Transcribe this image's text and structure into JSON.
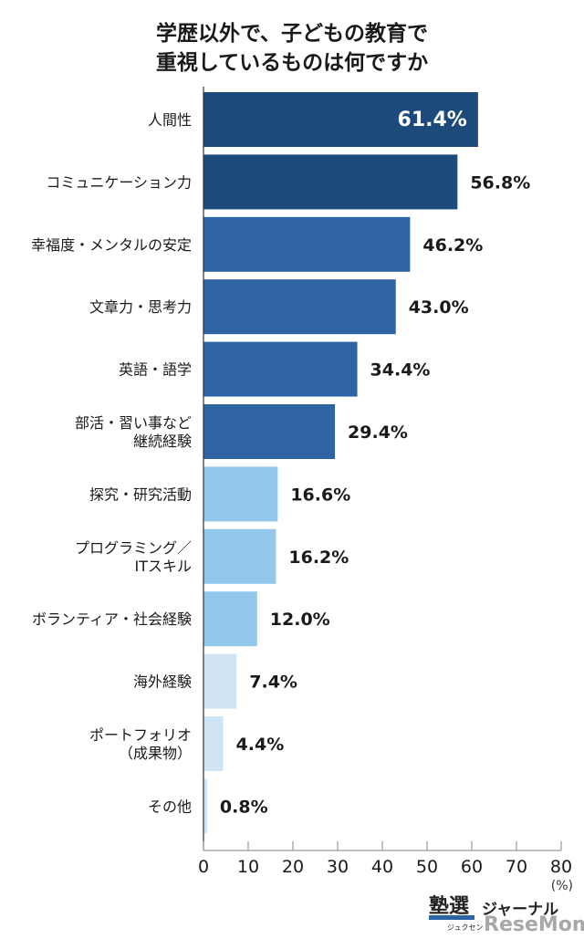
{
  "chart_data": {
    "type": "bar",
    "orientation": "horizontal",
    "title": [
      "学歴以外で、子どもの教育で",
      "重視しているものは何ですか"
    ],
    "categories": [
      "人間性",
      "コミュニケーション力",
      "幸福度・メンタルの安定",
      "文章力・思考力",
      "英語・語学",
      "部活・習い事など\n継続経験",
      "探究・研究活動",
      "プログラミング／\nITスキル",
      "ボランティア・社会経験",
      "海外経験",
      "ポートフォリオ\n（成果物）",
      "その他"
    ],
    "values": [
      61.4,
      56.8,
      46.2,
      43.0,
      34.4,
      29.4,
      16.6,
      16.2,
      12.0,
      7.4,
      4.4,
      0.8
    ],
    "value_labels": [
      "61.4%",
      "56.8%",
      "46.2%",
      "43.0%",
      "34.4%",
      "29.4%",
      "16.6%",
      "16.2%",
      "12.0%",
      "7.4%",
      "4.4%",
      "0.8%"
    ],
    "bar_colors": [
      "#1c4a7b",
      "#1c4a7b",
      "#2e64a4",
      "#2e64a4",
      "#2e64a4",
      "#2e64a4",
      "#92c8eb",
      "#92c8eb",
      "#92c8eb",
      "#cfe5f6",
      "#cfe5f6",
      "#cfe5f6"
    ],
    "xlim": [
      0,
      80
    ],
    "xticks": [
      "0",
      "10",
      "20",
      "30",
      "40",
      "50",
      "60",
      "70",
      "80"
    ],
    "xunit": "(%)",
    "grid": false,
    "legend": "none"
  },
  "logo": {
    "brand": "塾選",
    "brand_reading": "ジュクセン",
    "journal": "ジャーナル",
    "publisher": "ReseMom"
  }
}
